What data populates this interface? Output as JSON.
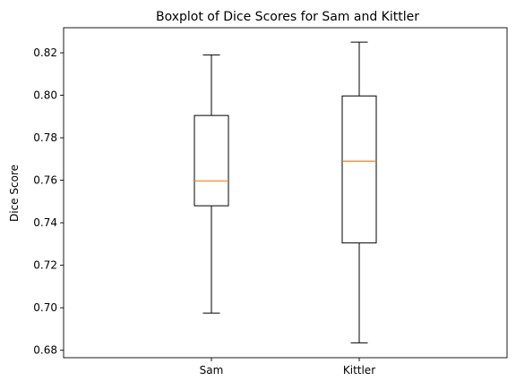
{
  "chart_data": {
    "type": "box",
    "title": "Boxplot of Dice Scores for Sam and Kittler",
    "xlabel": "",
    "ylabel": "Dice Score",
    "ylim": [
      0.6765,
      0.8318
    ],
    "yticks": [
      "0.68",
      "0.70",
      "0.72",
      "0.74",
      "0.76",
      "0.78",
      "0.80",
      "0.82"
    ],
    "grid": false,
    "series": [
      {
        "category": "Sam",
        "min": 0.6975,
        "q1": 0.748,
        "median": 0.7597,
        "q3": 0.7905,
        "max": 0.819
      },
      {
        "category": "Kittler",
        "min": 0.6835,
        "q1": 0.7305,
        "median": 0.769,
        "q3": 0.7997,
        "max": 0.825
      }
    ],
    "colors": {
      "box": "#000000",
      "median": "#ff7f0e",
      "whisker": "#000000"
    }
  }
}
